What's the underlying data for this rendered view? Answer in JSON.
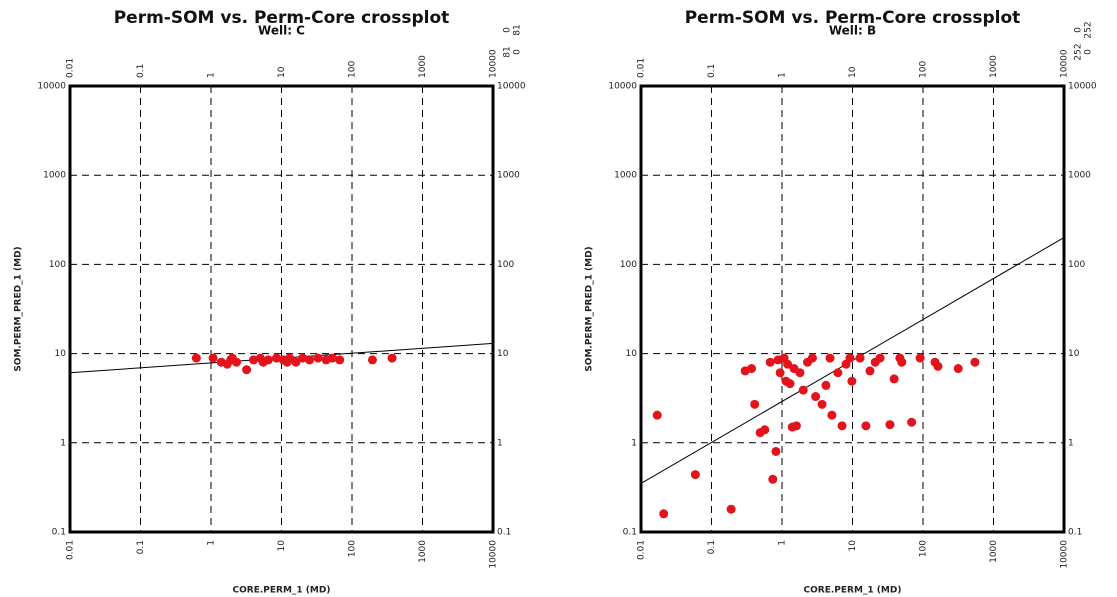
{
  "chart_data": [
    {
      "type": "scatter",
      "title": "Perm-SOM vs. Perm-Core crossplot",
      "subtitle": "Well: C",
      "x_label": "CORE.PERM_1 (MD)",
      "y_label": "SOM.PERM_PRED_1 (MD)",
      "corner_counts": [
        0,
        81,
        81,
        0
      ],
      "log_x": true,
      "log_y": true,
      "grid": true,
      "color": "#e3131b",
      "xlim": [
        0.01,
        10000
      ],
      "ylim": [
        0.1,
        10000
      ],
      "xticks": [
        0.01,
        0.1,
        1,
        10,
        100,
        1000,
        10000
      ],
      "yticks": [
        0.1,
        1,
        10,
        100,
        1000,
        10000
      ],
      "x": [
        0.62,
        1.07,
        1.4,
        1.7,
        1.9,
        2.3,
        3.2,
        4,
        5,
        6.5,
        8.5,
        10.6,
        13,
        16,
        20,
        25,
        33,
        43,
        53,
        67,
        195,
        370,
        2,
        5.5,
        12
      ],
      "values": [
        8.9,
        8.9,
        8,
        7.6,
        8.5,
        8,
        6.6,
        8.5,
        8.9,
        8.5,
        8.9,
        8.5,
        8.9,
        8,
        8.9,
        8.5,
        8.9,
        8.5,
        8.9,
        8.5,
        8.5,
        8.9,
        8.9,
        8,
        8
      ],
      "fit_line": {
        "x": [
          0.01,
          10000
        ],
        "values": [
          6.1,
          13
        ],
        "color": "#000000"
      }
    },
    {
      "type": "scatter",
      "title": "Perm-SOM vs. Perm-Core crossplot",
      "subtitle": "Well: B",
      "x_label": "CORE.PERM_1 (MD)",
      "y_label": "SOM.PERM_PRED_1 (MD)",
      "corner_counts": [
        0,
        252,
        252,
        0
      ],
      "log_x": true,
      "log_y": true,
      "grid": true,
      "color": "#e3131b",
      "xlim": [
        0.01,
        10000
      ],
      "ylim": [
        0.1,
        10000
      ],
      "xticks": [
        0.01,
        0.1,
        1,
        10,
        100,
        1000,
        10000
      ],
      "yticks": [
        0.1,
        1,
        10,
        100,
        1000,
        10000
      ],
      "x": [
        0.017,
        0.021,
        0.059,
        0.19,
        0.3,
        0.37,
        0.41,
        0.49,
        0.57,
        0.74,
        0.82,
        0.68,
        0.88,
        1.07,
        1.2,
        1.4,
        1.6,
        1.3,
        1.8,
        2,
        2.3,
        2.7,
        3,
        3.7,
        4.2,
        5.1,
        6.2,
        7.1,
        8.1,
        9.8,
        12.8,
        15.5,
        17.7,
        24.6,
        34,
        39,
        50,
        69,
        91,
        148,
        163,
        316,
        545,
        4.8,
        9.2,
        21,
        47,
        0.94,
        1.14,
        1.48
      ],
      "values": [
        2.04,
        0.16,
        0.44,
        0.18,
        6.4,
        6.8,
        2.7,
        1.3,
        1.4,
        0.39,
        0.8,
        8,
        8.5,
        8.9,
        7.6,
        1.5,
        1.55,
        4.6,
        6.1,
        3.9,
        8,
        8.9,
        3.3,
        2.7,
        4.4,
        2.04,
        6.1,
        1.55,
        7.6,
        4.9,
        8.9,
        1.55,
        6.4,
        8.9,
        1.6,
        5.2,
        8,
        1.7,
        8.9,
        8,
        7.2,
        6.8,
        8,
        8.9,
        8.9,
        8,
        8.9,
        6.1,
        4.9,
        6.8
      ],
      "fit_line": {
        "x": [
          0.01,
          10000
        ],
        "values": [
          0.35,
          200
        ],
        "color": "#000000"
      }
    }
  ]
}
